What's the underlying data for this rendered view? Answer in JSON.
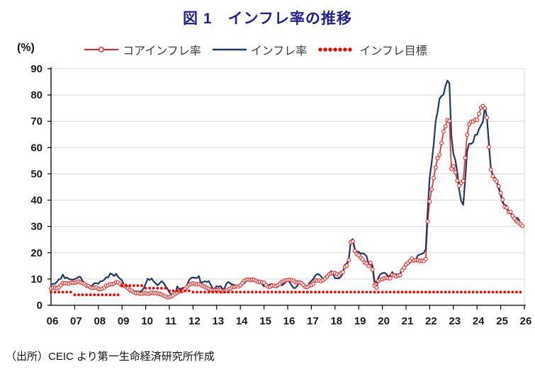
{
  "header": {
    "title": "図 1　インフレ率の推移"
  },
  "axes": {
    "unit_label": "(%)",
    "y_ticks": [
      0,
      10,
      20,
      30,
      40,
      50,
      60,
      70,
      80,
      90
    ],
    "x_tick_labels": [
      "06",
      "07",
      "08",
      "09",
      "10",
      "11",
      "12",
      "13",
      "14",
      "15",
      "16",
      "17",
      "18",
      "19",
      "20",
      "21",
      "22",
      "23",
      "24",
      "25",
      "26"
    ]
  },
  "source_note": "（出所）CEIC より第一生命経済研究所作成",
  "colors": {
    "title": "#1f1f8e",
    "core_inflation": "#f2231f",
    "inflation": "#1f3864",
    "target": "#ff0000",
    "gridline": "#d9d9d9",
    "axis": "#000000"
  },
  "chart_data": {
    "type": "line",
    "title": "図 1　インフレ率の推移",
    "ylabel": "(%)",
    "ylim": [
      0,
      90
    ],
    "ytick_step": 10,
    "x_range": [
      "2006-01",
      "2025-12"
    ],
    "x_tick_labels": [
      "06",
      "07",
      "08",
      "09",
      "10",
      "11",
      "12",
      "13",
      "14",
      "15",
      "16",
      "17",
      "18",
      "19",
      "20",
      "21",
      "22",
      "23",
      "24",
      "25",
      "26"
    ],
    "grid": "horizontal",
    "legend_position": "top",
    "series": [
      {
        "name": "コアインフレ率",
        "type": "line",
        "marker": "open-circle",
        "color": "#f2231f",
        "frequency": "monthly",
        "start": "2006-01",
        "values": [
          6.4,
          6.7,
          6.7,
          6.5,
          6.8,
          7.6,
          8.5,
          8.4,
          8.4,
          8.2,
          8.6,
          8.5,
          8.6,
          8.8,
          9.0,
          8.7,
          8.4,
          8.1,
          7.6,
          7.3,
          6.8,
          6.6,
          6.7,
          6.8,
          6.2,
          6.1,
          6.3,
          6.7,
          7.4,
          7.6,
          8.0,
          8.0,
          8.3,
          8.8,
          8.7,
          8.1,
          7.6,
          7.5,
          7.1,
          6.5,
          5.9,
          5.5,
          4.9,
          4.6,
          4.7,
          4.4,
          4.4,
          4.6,
          4.6,
          4.4,
          4.5,
          4.8,
          4.6,
          4.7,
          4.5,
          4.3,
          4.1,
          3.7,
          3.4,
          3.0,
          3.2,
          3.4,
          3.8,
          4.4,
          4.8,
          5.3,
          5.4,
          5.6,
          6.2,
          7.1,
          7.8,
          8.1,
          8.4,
          8.1,
          7.9,
          8.2,
          7.7,
          7.4,
          7.0,
          6.6,
          6.3,
          5.9,
          5.7,
          5.8,
          5.7,
          5.8,
          5.8,
          5.4,
          5.6,
          5.6,
          6.1,
          6.4,
          7.0,
          7.0,
          7.2,
          7.1,
          7.6,
          8.4,
          9.3,
          9.7,
          9.8,
          9.7,
          9.8,
          9.7,
          9.3,
          8.9,
          8.9,
          8.7,
          8.6,
          7.7,
          7.1,
          7.0,
          7.5,
          7.5,
          7.3,
          7.7,
          8.2,
          8.9,
          9.2,
          9.5,
          9.6,
          9.7,
          9.5,
          9.4,
          8.8,
          8.7,
          8.7,
          8.4,
          7.7,
          7.0,
          6.9,
          7.5,
          7.7,
          8.2,
          9.5,
          9.4,
          9.4,
          9.2,
          9.6,
          10.2,
          10.9,
          11.8,
          12.1,
          12.3,
          12.2,
          11.9,
          11.4,
          12.2,
          12.6,
          14.6,
          15.1,
          17.2,
          24.0,
          24.3,
          20.7,
          19.5,
          19.0,
          18.1,
          17.5,
          16.3,
          15.9,
          14.9,
          16.2,
          13.6,
          7.5,
          6.7,
          9.3,
          9.8,
          9.9,
          10.3,
          10.5,
          10.3,
          10.3,
          11.6,
          11.4,
          11.0,
          11.3,
          11.5,
          13.3,
          14.3,
          15.5,
          16.2,
          16.9,
          17.8,
          17.0,
          17.2,
          17.2,
          16.8,
          17.0,
          16.8,
          17.6,
          31.9,
          39.5,
          44.1,
          48.4,
          52.4,
          56.0,
          57.3,
          61.7,
          66.1,
          68.1,
          70.5,
          70.2,
          51.9,
          52.9,
          50.6,
          47.4,
          45.5,
          46.6,
          47.3,
          56.1,
          64.9,
          68.9,
          69.8,
          69.9,
          70.6,
          70.5,
          72.9,
          75.2,
          75.8,
          75.0,
          71.4,
          60.2,
          51.6,
          49.1,
          47.8,
          47.1,
          45.3,
          42.7,
          40.2,
          37.4,
          37.1,
          35.4,
          35.6,
          34.0,
          33.0,
          32.0,
          31.5,
          30.9,
          30.2
        ]
      },
      {
        "name": "インフレ率",
        "type": "line",
        "marker": "none",
        "color": "#1f3864",
        "frequency": "monthly",
        "start": "2006-01",
        "values": [
          7.9,
          8.2,
          8.2,
          8.9,
          9.9,
          10.1,
          11.7,
          10.3,
          10.6,
          10.0,
          9.9,
          9.7,
          10.0,
          10.2,
          10.9,
          10.7,
          9.2,
          8.6,
          6.9,
          7.4,
          7.1,
          7.7,
          8.4,
          8.4,
          8.2,
          9.1,
          9.2,
          9.7,
          10.7,
          10.6,
          12.1,
          11.8,
          11.1,
          12.0,
          10.8,
          10.1,
          9.5,
          7.7,
          7.9,
          6.1,
          5.2,
          5.7,
          5.4,
          5.3,
          5.3,
          5.1,
          5.5,
          6.5,
          8.2,
          10.1,
          9.6,
          10.2,
          9.1,
          8.4,
          7.6,
          8.3,
          9.2,
          8.6,
          7.3,
          6.4,
          4.9,
          4.2,
          4.0,
          4.3,
          7.2,
          6.2,
          6.3,
          6.7,
          6.2,
          7.7,
          9.5,
          10.4,
          10.6,
          10.4,
          10.4,
          11.1,
          8.3,
          8.9,
          9.1,
          8.9,
          9.2,
          7.8,
          6.4,
          6.2,
          7.3,
          7.0,
          7.3,
          6.1,
          6.5,
          8.3,
          8.9,
          8.2,
          7.9,
          7.7,
          7.3,
          7.4,
          7.8,
          7.9,
          8.4,
          9.4,
          9.7,
          9.2,
          9.3,
          9.5,
          8.9,
          9.0,
          9.2,
          8.2,
          7.2,
          7.5,
          7.6,
          7.9,
          8.1,
          7.2,
          6.8,
          7.1,
          8.0,
          7.6,
          8.1,
          8.8,
          9.6,
          8.8,
          7.5,
          6.6,
          6.6,
          7.6,
          8.8,
          8.1,
          7.3,
          7.2,
          7.0,
          8.5,
          9.2,
          10.1,
          11.3,
          11.9,
          11.7,
          10.9,
          9.8,
          10.7,
          11.2,
          11.9,
          13.0,
          11.9,
          10.3,
          10.3,
          10.2,
          10.9,
          12.1,
          15.4,
          15.9,
          17.9,
          24.5,
          25.2,
          21.6,
          20.3,
          20.4,
          19.7,
          19.7,
          19.5,
          18.7,
          15.7,
          16.7,
          15.0,
          9.3,
          8.6,
          10.6,
          11.8,
          12.2,
          12.4,
          11.9,
          10.9,
          11.4,
          12.6,
          11.8,
          11.8,
          11.8,
          11.9,
          14.0,
          14.6,
          15.0,
          15.6,
          16.2,
          17.1,
          16.6,
          17.5,
          19.0,
          19.3,
          19.6,
          19.9,
          21.3,
          36.1,
          48.7,
          54.4,
          61.1,
          70.0,
          73.5,
          78.6,
          79.6,
          80.2,
          83.5,
          85.5,
          84.4,
          64.3,
          57.7,
          55.2,
          50.5,
          43.7,
          39.6,
          38.2,
          47.8,
          58.9,
          61.5,
          61.4,
          62.0,
          64.8,
          64.9,
          67.1,
          68.5,
          69.8,
          75.4,
          71.6,
          61.8,
          52.0,
          49.4,
          48.6,
          47.1,
          44.4,
          42.1,
          39.1,
          38.1,
          37.9,
          35.4,
          35.1,
          33.5,
          33.0,
          33.3,
          32.9,
          31.1,
          30.4
        ]
      },
      {
        "name": "インフレ目標",
        "type": "dotted",
        "marker": "dot",
        "color": "#ff0000",
        "frequency": "yearly",
        "start": "2006",
        "values": [
          5,
          4,
          4,
          7.5,
          6.5,
          5.5,
          5,
          5,
          5,
          5,
          5,
          5,
          5,
          5,
          5,
          5,
          5,
          5,
          5,
          5
        ]
      }
    ]
  }
}
